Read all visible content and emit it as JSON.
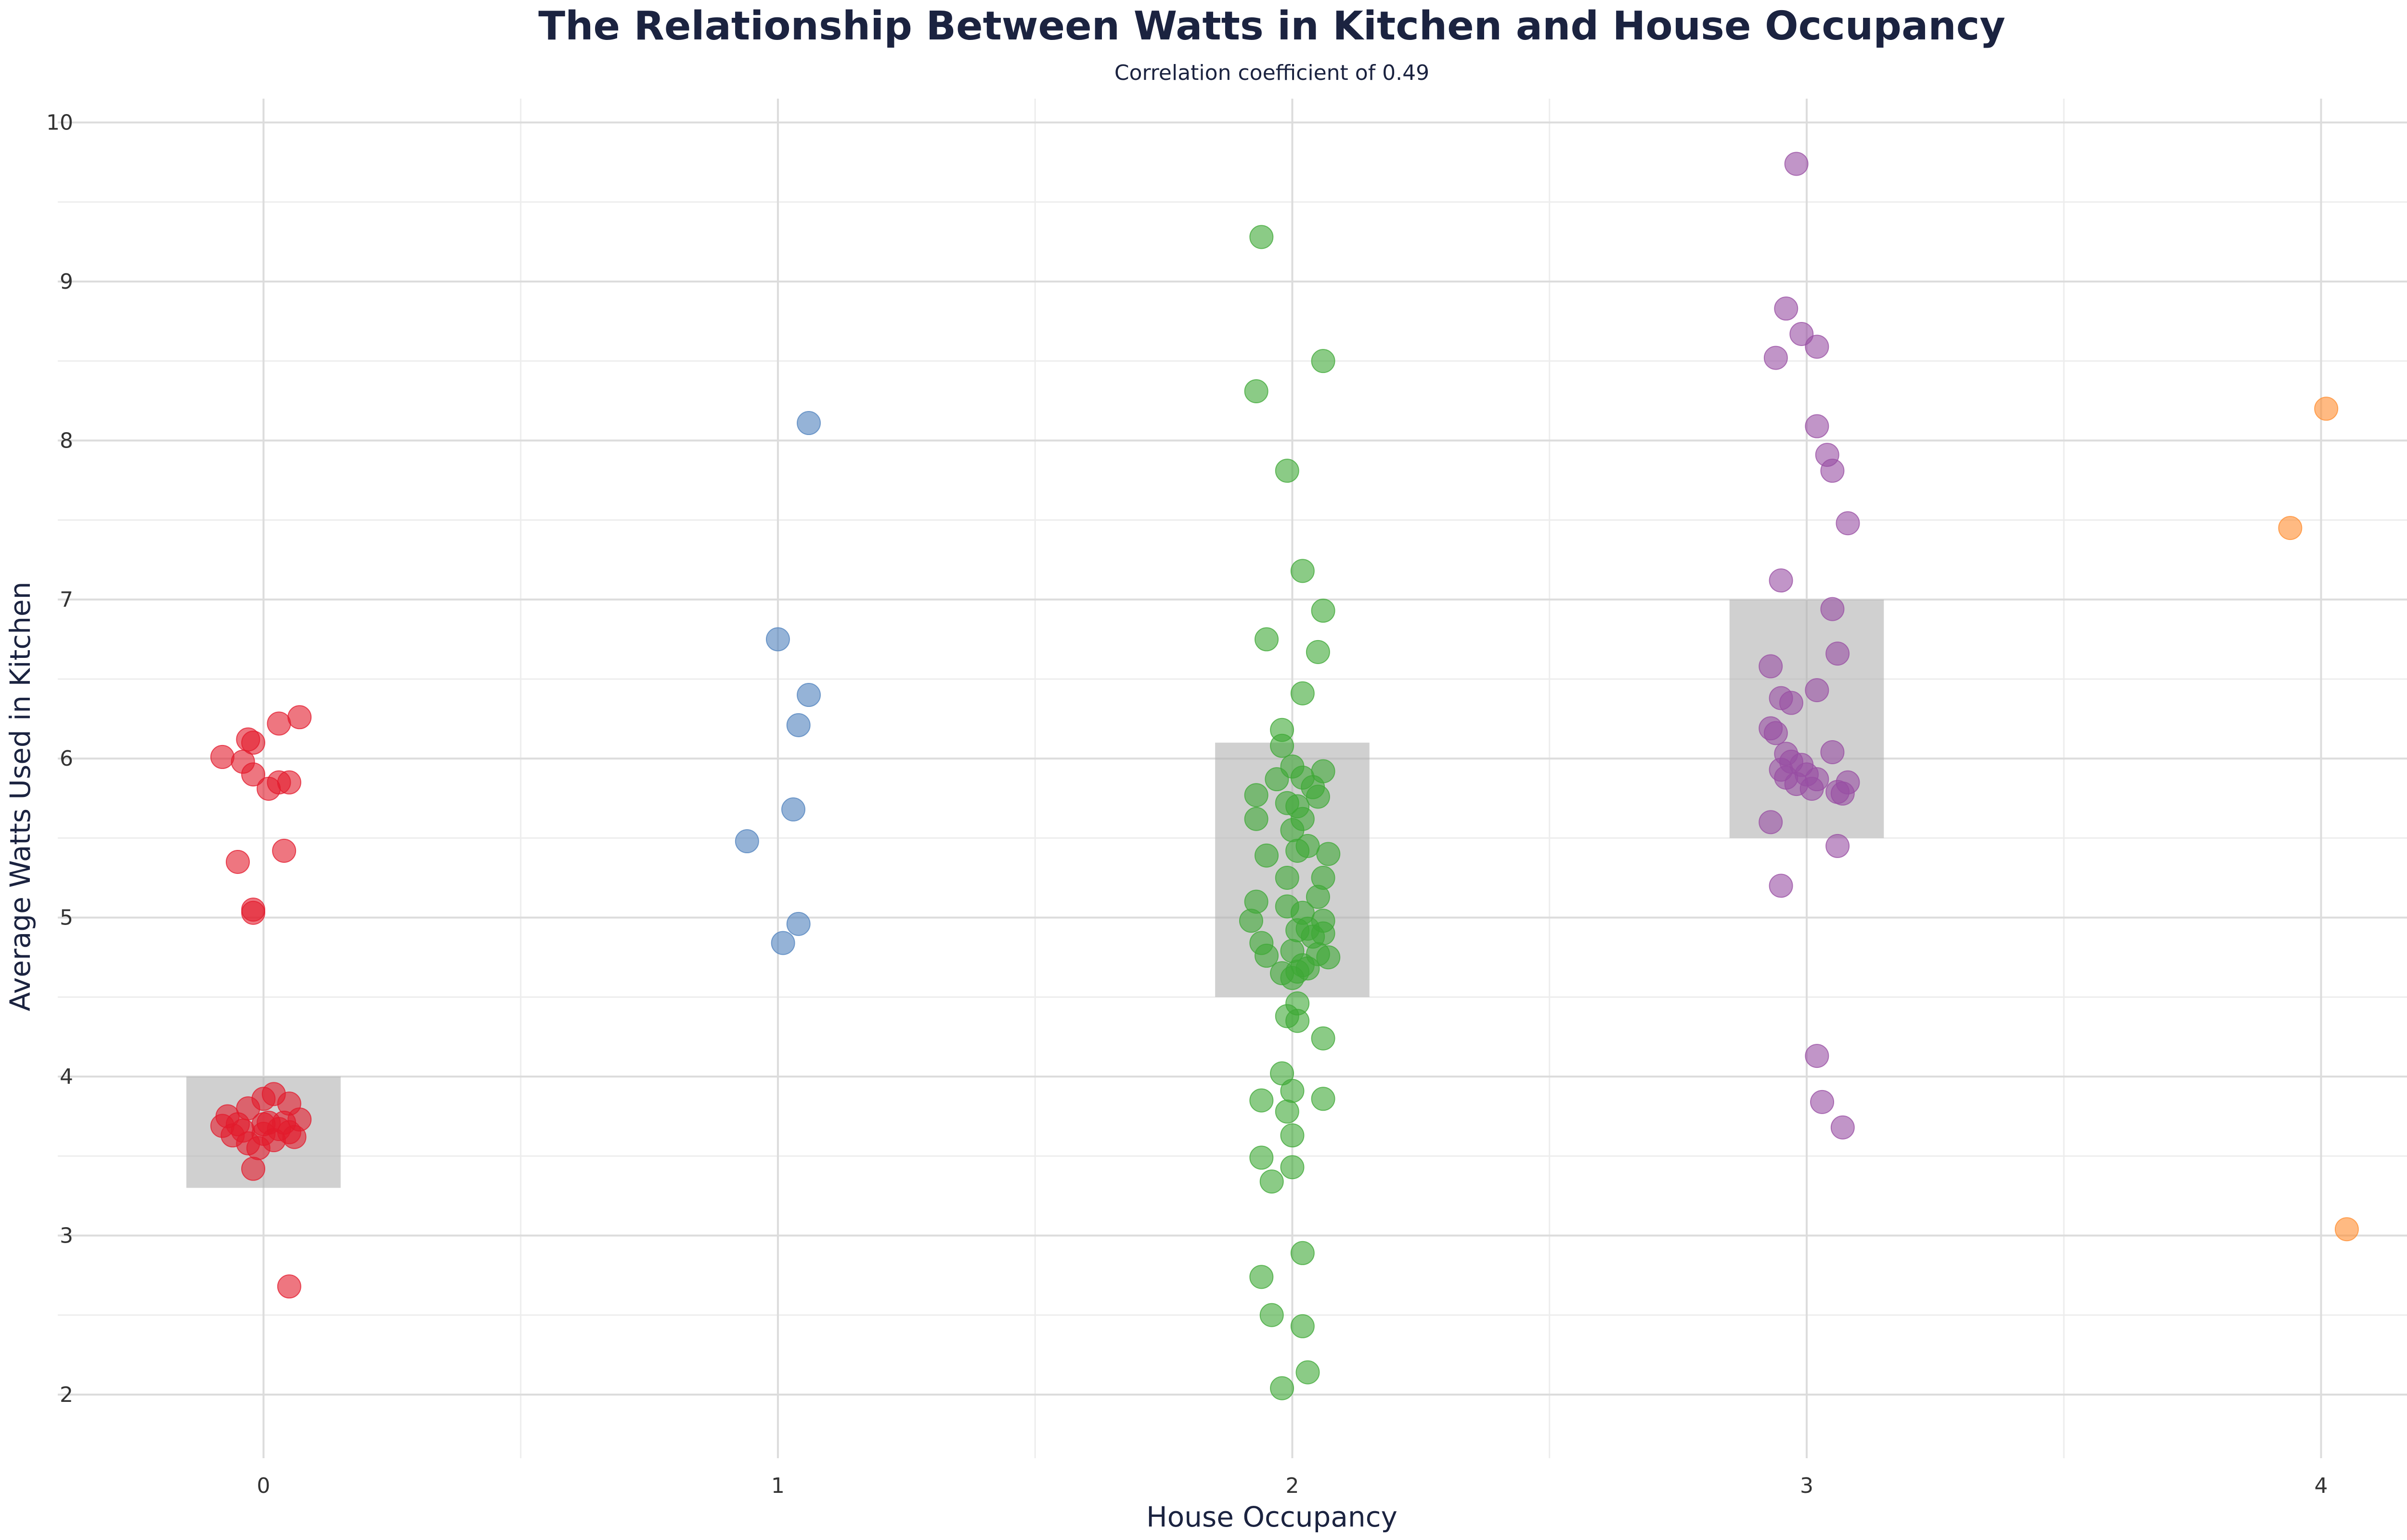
{
  "chart_data": {
    "type": "scatter",
    "title": "The Relationship Between Watts in Kitchen and House Occupancy",
    "subtitle": "Correlation coefficient of 0.49",
    "xlabel": "House Occupancy",
    "ylabel": "Average Watts Used in Kitchen",
    "xlim": [
      -0.4,
      4.27
    ],
    "ylim": [
      1.6,
      10.15
    ],
    "x_ticks": [
      0,
      1,
      2,
      3,
      4
    ],
    "y_ticks": [
      2,
      3,
      4,
      5,
      6,
      7,
      8,
      9,
      10
    ],
    "grid": true,
    "legend": "none",
    "iqr_boxes": [
      {
        "x": 0,
        "q1": 3.3,
        "q3": 4.0
      },
      {
        "x": 2,
        "q1": 4.5,
        "q3": 6.1
      },
      {
        "x": 3,
        "q1": 5.5,
        "q3": 7.0
      }
    ],
    "box_color": "#b0b0b0",
    "series": [
      {
        "color": "#e31a2c",
        "points": [
          [
            -0.02,
            6.1
          ],
          [
            -0.03,
            6.12
          ],
          [
            0.03,
            6.22
          ],
          [
            0.07,
            6.26
          ],
          [
            -0.08,
            6.01
          ],
          [
            -0.04,
            5.98
          ],
          [
            -0.02,
            5.9
          ],
          [
            0.03,
            5.85
          ],
          [
            0.01,
            5.81
          ],
          [
            0.05,
            5.85
          ],
          [
            0.04,
            5.42
          ],
          [
            -0.05,
            5.35
          ],
          [
            -0.02,
            5.05
          ],
          [
            -0.02,
            5.03
          ],
          [
            -0.07,
            3.75
          ],
          [
            0.05,
            3.83
          ],
          [
            0.02,
            3.89
          ],
          [
            0.0,
            3.86
          ],
          [
            -0.03,
            3.8
          ],
          [
            0.07,
            3.73
          ],
          [
            -0.08,
            3.69
          ],
          [
            -0.06,
            3.63
          ],
          [
            -0.04,
            3.66
          ],
          [
            -0.03,
            3.58
          ],
          [
            0.0,
            3.64
          ],
          [
            0.01,
            3.71
          ],
          [
            0.03,
            3.67
          ],
          [
            0.05,
            3.65
          ],
          [
            0.06,
            3.62
          ],
          [
            -0.01,
            3.55
          ],
          [
            0.04,
            3.71
          ],
          [
            -0.02,
            3.42
          ],
          [
            0.05,
            2.68
          ],
          [
            0.0,
            3.7
          ],
          [
            0.02,
            3.6
          ],
          [
            -0.05,
            3.7
          ]
        ]
      },
      {
        "color": "#4f81bd",
        "points": [
          [
            1.06,
            8.11
          ],
          [
            1.0,
            6.75
          ],
          [
            1.06,
            6.4
          ],
          [
            1.04,
            6.21
          ],
          [
            1.03,
            5.68
          ],
          [
            0.94,
            5.48
          ],
          [
            1.04,
            4.96
          ],
          [
            1.01,
            4.84
          ]
        ]
      },
      {
        "color": "#3ea836",
        "points": [
          [
            1.94,
            9.28
          ],
          [
            2.06,
            8.5
          ],
          [
            1.93,
            8.31
          ],
          [
            1.99,
            7.81
          ],
          [
            2.02,
            7.18
          ],
          [
            2.06,
            6.93
          ],
          [
            1.95,
            6.75
          ],
          [
            2.05,
            6.67
          ],
          [
            2.02,
            6.41
          ],
          [
            1.98,
            6.18
          ],
          [
            1.98,
            6.08
          ],
          [
            2.0,
            5.95
          ],
          [
            2.06,
            5.92
          ],
          [
            2.02,
            5.88
          ],
          [
            1.97,
            5.87
          ],
          [
            2.04,
            5.82
          ],
          [
            1.93,
            5.77
          ],
          [
            2.05,
            5.76
          ],
          [
            2.01,
            5.7
          ],
          [
            1.99,
            5.72
          ],
          [
            2.02,
            5.62
          ],
          [
            1.93,
            5.62
          ],
          [
            2.0,
            5.55
          ],
          [
            2.03,
            5.45
          ],
          [
            2.07,
            5.4
          ],
          [
            2.01,
            5.42
          ],
          [
            1.95,
            5.39
          ],
          [
            2.06,
            5.25
          ],
          [
            1.99,
            5.25
          ],
          [
            2.05,
            5.13
          ],
          [
            1.93,
            5.1
          ],
          [
            1.99,
            5.07
          ],
          [
            2.02,
            5.03
          ],
          [
            1.92,
            4.98
          ],
          [
            2.06,
            4.98
          ],
          [
            2.03,
            4.93
          ],
          [
            2.01,
            4.92
          ],
          [
            2.06,
            4.9
          ],
          [
            2.04,
            4.88
          ],
          [
            1.94,
            4.84
          ],
          [
            2.0,
            4.79
          ],
          [
            2.05,
            4.77
          ],
          [
            2.07,
            4.75
          ],
          [
            1.95,
            4.76
          ],
          [
            2.02,
            4.7
          ],
          [
            2.01,
            4.66
          ],
          [
            1.98,
            4.65
          ],
          [
            2.03,
            4.68
          ],
          [
            2.0,
            4.62
          ],
          [
            2.01,
            4.46
          ],
          [
            1.99,
            4.38
          ],
          [
            2.01,
            4.35
          ],
          [
            2.06,
            4.24
          ],
          [
            1.98,
            4.02
          ],
          [
            2.0,
            3.91
          ],
          [
            1.94,
            3.85
          ],
          [
            2.06,
            3.86
          ],
          [
            1.99,
            3.78
          ],
          [
            2.0,
            3.63
          ],
          [
            1.94,
            3.49
          ],
          [
            2.0,
            3.43
          ],
          [
            1.96,
            3.34
          ],
          [
            2.02,
            2.89
          ],
          [
            1.94,
            2.74
          ],
          [
            1.96,
            2.5
          ],
          [
            2.02,
            2.43
          ],
          [
            2.03,
            2.14
          ],
          [
            1.98,
            2.04
          ]
        ]
      },
      {
        "color": "#984ea3",
        "points": [
          [
            2.98,
            9.74
          ],
          [
            2.96,
            8.83
          ],
          [
            2.99,
            8.67
          ],
          [
            3.02,
            8.59
          ],
          [
            2.94,
            8.52
          ],
          [
            3.02,
            8.09
          ],
          [
            3.04,
            7.91
          ],
          [
            3.05,
            7.81
          ],
          [
            3.08,
            7.48
          ],
          [
            2.95,
            7.12
          ],
          [
            3.05,
            6.94
          ],
          [
            3.06,
            6.66
          ],
          [
            2.93,
            6.58
          ],
          [
            3.02,
            6.43
          ],
          [
            2.95,
            6.38
          ],
          [
            2.97,
            6.35
          ],
          [
            2.93,
            6.19
          ],
          [
            2.94,
            6.16
          ],
          [
            3.05,
            6.04
          ],
          [
            2.96,
            6.03
          ],
          [
            2.97,
            5.98
          ],
          [
            2.99,
            5.96
          ],
          [
            2.95,
            5.93
          ],
          [
            3.0,
            5.9
          ],
          [
            2.96,
            5.88
          ],
          [
            3.02,
            5.87
          ],
          [
            3.08,
            5.85
          ],
          [
            2.98,
            5.84
          ],
          [
            3.01,
            5.81
          ],
          [
            3.07,
            5.78
          ],
          [
            3.06,
            5.79
          ],
          [
            2.93,
            5.6
          ],
          [
            3.06,
            5.45
          ],
          [
            2.95,
            5.2
          ],
          [
            3.02,
            4.13
          ],
          [
            3.03,
            3.84
          ],
          [
            3.07,
            3.68
          ]
        ]
      },
      {
        "color": "#ff8c2e",
        "points": [
          [
            4.01,
            8.2
          ],
          [
            3.94,
            7.45
          ],
          [
            4.05,
            3.04
          ]
        ]
      }
    ]
  }
}
